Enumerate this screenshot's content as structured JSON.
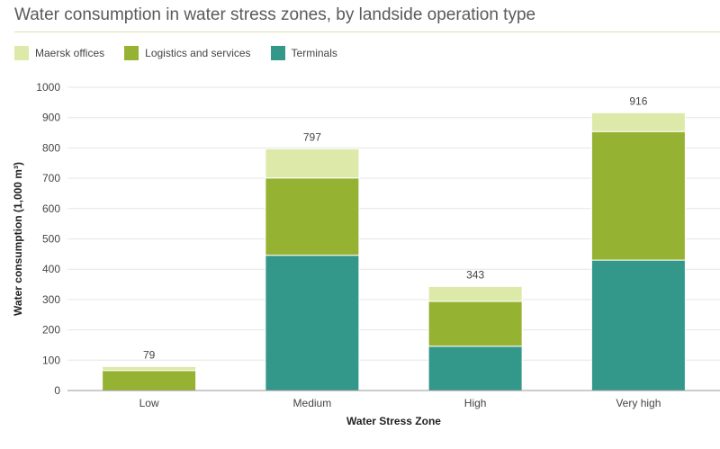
{
  "title": "Water consumption in water stress zones, by landside operation type",
  "legend": [
    {
      "label": "Maersk offices",
      "color": "#dde9a8"
    },
    {
      "label": "Logistics and services",
      "color": "#96b232"
    },
    {
      "label": "Terminals",
      "color": "#33978a"
    }
  ],
  "chart_data": {
    "type": "bar",
    "stacked": true,
    "title": "Water consumption in water stress zones, by landside operation type",
    "xlabel": "Water Stress Zone",
    "ylabel": "Water consumption (1,000 m³)",
    "ylim": [
      0,
      1000
    ],
    "yticks": [
      0,
      100,
      200,
      300,
      400,
      500,
      600,
      700,
      800,
      900,
      1000
    ],
    "categories": [
      "Low",
      "Medium",
      "High",
      "Very high"
    ],
    "series": [
      {
        "name": "Terminals",
        "color": "#33978a",
        "values": [
          0,
          446,
          146,
          430
        ]
      },
      {
        "name": "Logistics and services",
        "color": "#96b232",
        "values": [
          66,
          255,
          148,
          424
        ]
      },
      {
        "name": "Maersk offices",
        "color": "#dde9a8",
        "values": [
          13,
          96,
          49,
          62
        ]
      }
    ],
    "totals": [
      "79",
      "797",
      "343",
      "916"
    ],
    "grid": true,
    "legend_position": "top-left"
  }
}
